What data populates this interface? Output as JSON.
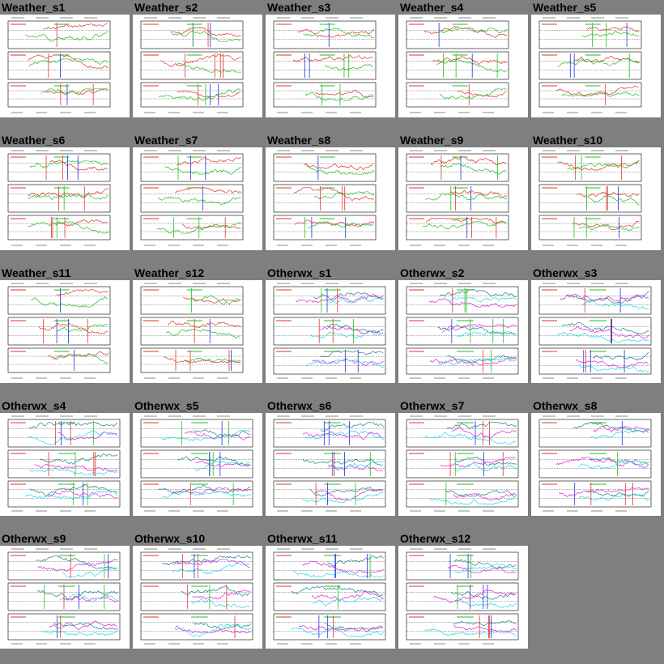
{
  "page": {
    "background": "#7f7f7f"
  },
  "colors": {
    "red": "#e0342e",
    "green": "#20c020",
    "blue": "#2030e0",
    "cyan": "#20d8e0",
    "magenta": "#e020e0",
    "teal": "#208080",
    "frame": "#000000"
  },
  "thumbnails": [
    {
      "title": "Weather_s1",
      "style": "weather"
    },
    {
      "title": "Weather_s2",
      "style": "weather"
    },
    {
      "title": "Weather_s3",
      "style": "weather"
    },
    {
      "title": "Weather_s4",
      "style": "weather"
    },
    {
      "title": "Weather_s5",
      "style": "weather"
    },
    {
      "title": "Weather_s6",
      "style": "weather"
    },
    {
      "title": "Weather_s7",
      "style": "weather"
    },
    {
      "title": "Weather_s8",
      "style": "weather"
    },
    {
      "title": "Weather_s9",
      "style": "weather"
    },
    {
      "title": "Weather_s10",
      "style": "weather"
    },
    {
      "title": "Weather_s11",
      "style": "weather"
    },
    {
      "title": "Weather_s12",
      "style": "weather"
    },
    {
      "title": "Otherwx_s1",
      "style": "otherwx"
    },
    {
      "title": "Otherwx_s2",
      "style": "otherwx"
    },
    {
      "title": "Otherwx_s3",
      "style": "otherwx"
    },
    {
      "title": "Otherwx_s4",
      "style": "otherwx"
    },
    {
      "title": "Otherwx_s5",
      "style": "otherwx"
    },
    {
      "title": "Otherwx_s6",
      "style": "otherwx"
    },
    {
      "title": "Otherwx_s7",
      "style": "otherwx"
    },
    {
      "title": "Otherwx_s8",
      "style": "otherwx"
    },
    {
      "title": "Otherwx_s9",
      "style": "otherwx"
    },
    {
      "title": "Otherwx_s10",
      "style": "otherwx"
    },
    {
      "title": "Otherwx_s11",
      "style": "otherwx"
    },
    {
      "title": "Otherwx_s12",
      "style": "otherwx"
    }
  ]
}
